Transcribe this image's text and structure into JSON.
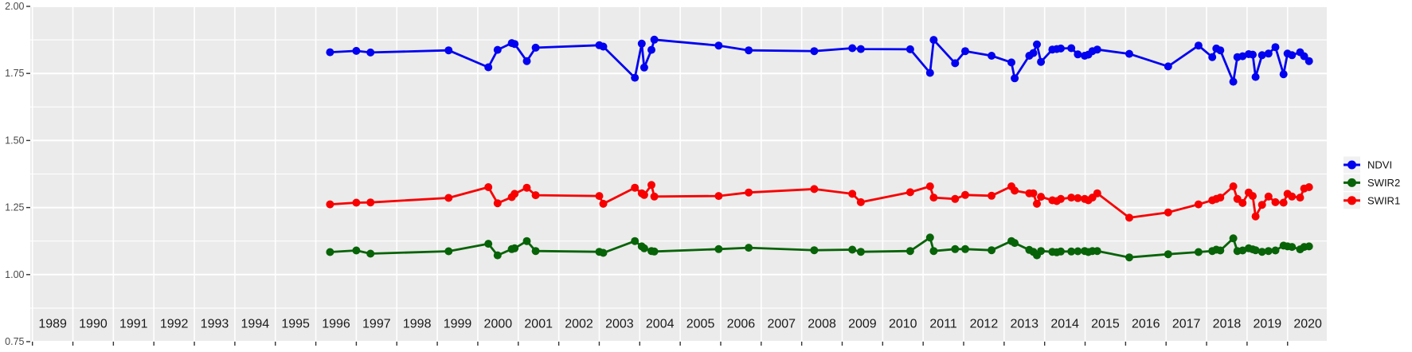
{
  "chart_data": {
    "type": "line",
    "markers": true,
    "title": "",
    "xlabel": "",
    "ylabel": "",
    "x_unit": "decimal_year",
    "xlim": [
      1988.95,
      2020.97
    ],
    "ylim": [
      0.75,
      2.0
    ],
    "grid": true,
    "legend_position": "right",
    "x_axis": {
      "years": [
        1989,
        1990,
        1991,
        1992,
        1993,
        1994,
        1995,
        1996,
        1997,
        1998,
        1999,
        2000,
        2001,
        2002,
        2003,
        2004,
        2005,
        2006,
        2007,
        2008,
        2009,
        2010,
        2011,
        2012,
        2013,
        2014,
        2015,
        2016,
        2017,
        2018,
        2019,
        2020
      ]
    },
    "y_axis": {
      "labels": [
        "2.00",
        "1.75",
        "1.50",
        "1.25",
        "1.00",
        "0.75"
      ],
      "values": [
        2.0,
        1.75,
        1.5,
        1.25,
        1.0,
        0.75
      ],
      "minor": [
        1.875,
        1.625,
        1.375,
        1.125,
        0.875
      ],
      "min": 0.75,
      "max": 2.0
    },
    "x": [
      1996.35,
      1997.0,
      1997.35,
      1999.28,
      2000.26,
      2000.49,
      2000.84,
      2000.91,
      2001.21,
      2001.43,
      2003.0,
      2003.1,
      2003.88,
      2004.05,
      2004.11,
      2004.29,
      2004.36,
      2005.95,
      2006.69,
      2008.31,
      2009.25,
      2009.46,
      2010.68,
      2011.17,
      2011.26,
      2011.79,
      2012.04,
      2012.69,
      2013.18,
      2013.26,
      2013.62,
      2013.72,
      2013.81,
      2013.91,
      2014.19,
      2014.3,
      2014.4,
      2014.66,
      2014.82,
      2014.99,
      2015.08,
      2015.18,
      2015.3,
      2016.09,
      2017.05,
      2017.8,
      2018.14,
      2018.24,
      2018.34,
      2018.66,
      2018.76,
      2018.89,
      2019.04,
      2019.14,
      2019.21,
      2019.37,
      2019.53,
      2019.7,
      2019.9,
      2020.0,
      2020.11,
      2020.31,
      2020.41,
      2020.53
    ],
    "series": [
      {
        "name": "NDVI",
        "color": "#0202F0",
        "values": [
          1.829,
          1.834,
          1.828,
          1.836,
          1.773,
          1.838,
          1.863,
          1.86,
          1.796,
          1.846,
          1.855,
          1.85,
          1.734,
          1.861,
          1.772,
          1.838,
          1.876,
          1.854,
          1.836,
          1.833,
          1.844,
          1.841,
          1.84,
          1.752,
          1.875,
          1.788,
          1.833,
          1.816,
          1.791,
          1.732,
          1.816,
          1.826,
          1.858,
          1.793,
          1.839,
          1.841,
          1.843,
          1.844,
          1.821,
          1.816,
          1.82,
          1.833,
          1.839,
          1.823,
          1.776,
          1.854,
          1.811,
          1.843,
          1.836,
          1.719,
          1.811,
          1.814,
          1.822,
          1.82,
          1.737,
          1.818,
          1.824,
          1.848,
          1.747,
          1.824,
          1.818,
          1.829,
          1.814,
          1.796
        ]
      },
      {
        "name": "SWIR2",
        "color": "#076307",
        "values": [
          1.084,
          1.09,
          1.078,
          1.087,
          1.115,
          1.072,
          1.095,
          1.098,
          1.125,
          1.088,
          1.085,
          1.081,
          1.125,
          1.105,
          1.098,
          1.088,
          1.086,
          1.095,
          1.1,
          1.091,
          1.093,
          1.085,
          1.088,
          1.138,
          1.088,
          1.095,
          1.095,
          1.091,
          1.125,
          1.118,
          1.092,
          1.085,
          1.072,
          1.088,
          1.085,
          1.083,
          1.086,
          1.086,
          1.087,
          1.088,
          1.084,
          1.088,
          1.088,
          1.064,
          1.076,
          1.084,
          1.088,
          1.093,
          1.09,
          1.135,
          1.088,
          1.09,
          1.098,
          1.094,
          1.091,
          1.085,
          1.088,
          1.09,
          1.108,
          1.105,
          1.103,
          1.094,
          1.103,
          1.105
        ]
      },
      {
        "name": "SWIR1",
        "color": "#F80000",
        "values": [
          1.262,
          1.268,
          1.269,
          1.286,
          1.326,
          1.266,
          1.289,
          1.301,
          1.324,
          1.296,
          1.293,
          1.264,
          1.324,
          1.303,
          1.297,
          1.334,
          1.291,
          1.293,
          1.306,
          1.319,
          1.301,
          1.27,
          1.307,
          1.329,
          1.287,
          1.282,
          1.297,
          1.294,
          1.329,
          1.313,
          1.303,
          1.303,
          1.264,
          1.29,
          1.277,
          1.274,
          1.282,
          1.287,
          1.285,
          1.282,
          1.277,
          1.287,
          1.303,
          1.212,
          1.232,
          1.262,
          1.277,
          1.282,
          1.287,
          1.329,
          1.282,
          1.267,
          1.306,
          1.293,
          1.217,
          1.26,
          1.291,
          1.27,
          1.268,
          1.301,
          1.291,
          1.287,
          1.321,
          1.326
        ]
      }
    ],
    "legend": [
      {
        "label": "NDVI",
        "color": "#0202F0"
      },
      {
        "label": "SWIR2",
        "color": "#076307"
      },
      {
        "label": "SWIR1",
        "color": "#F80000"
      }
    ],
    "colors": {
      "panel_bg": "#EBEBEB",
      "gridline": "#FFFFFF",
      "tick": "#333333",
      "x_label_text": "#1A1A1A",
      "y_label_text": "#4A4A4A",
      "legend_text": "#111111",
      "legend_key_bg": "#F1F1F1"
    }
  }
}
